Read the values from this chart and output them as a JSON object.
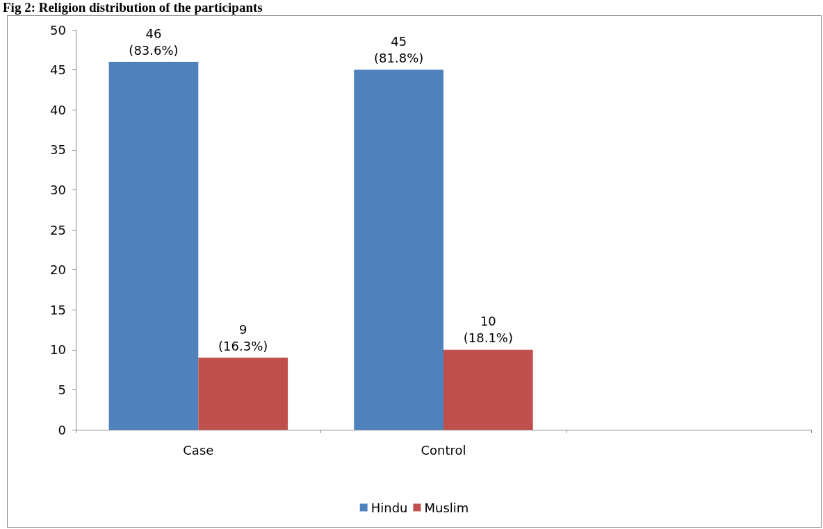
{
  "chart_data": {
    "type": "bar",
    "title": "Fig 2: Religion distribution of the participants",
    "categories": [
      "Case",
      "Control",
      null
    ],
    "series": [
      {
        "name": "Hindu",
        "color": "#4f81bd",
        "values": [
          46,
          45,
          null
        ],
        "value_labels": [
          "46\n(83.6%)",
          "45\n(81.8%)",
          null
        ]
      },
      {
        "name": "Muslim",
        "color": "#c0504d",
        "values": [
          9,
          10,
          null
        ],
        "value_labels": [
          "9\n(16.3%)",
          "10\n(18.1%)",
          null
        ]
      }
    ],
    "ylim": [
      0,
      50
    ],
    "yticks": [
      0,
      5,
      10,
      15,
      20,
      25,
      30,
      35,
      40,
      45,
      50
    ],
    "grid": false,
    "legend": "bottom"
  }
}
